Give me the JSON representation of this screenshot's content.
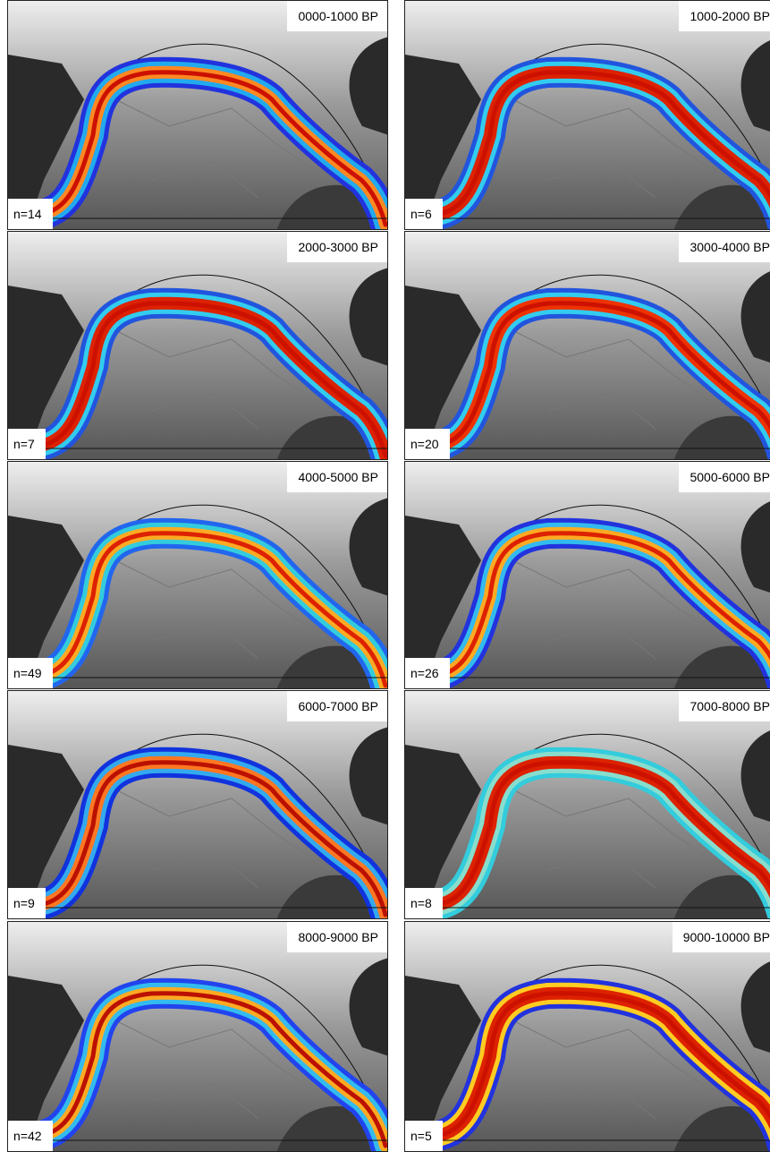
{
  "panels": [
    {
      "period": "0000-1000 BP",
      "n": "n=14"
    },
    {
      "period": "1000-2000 BP",
      "n": "n=6"
    },
    {
      "period": "2000-3000 BP",
      "n": "n=7"
    },
    {
      "period": "3000-4000 BP",
      "n": "n=20"
    },
    {
      "period": "4000-5000 BP",
      "n": "n=49"
    },
    {
      "period": "5000-6000 BP",
      "n": "n=26"
    },
    {
      "period": "6000-7000 BP",
      "n": "n=9"
    },
    {
      "period": "7000-8000 BP",
      "n": "n=8"
    },
    {
      "period": "8000-9000 BP",
      "n": "n=42"
    },
    {
      "period": "9000-10000 BP",
      "n": "n=5"
    }
  ]
}
